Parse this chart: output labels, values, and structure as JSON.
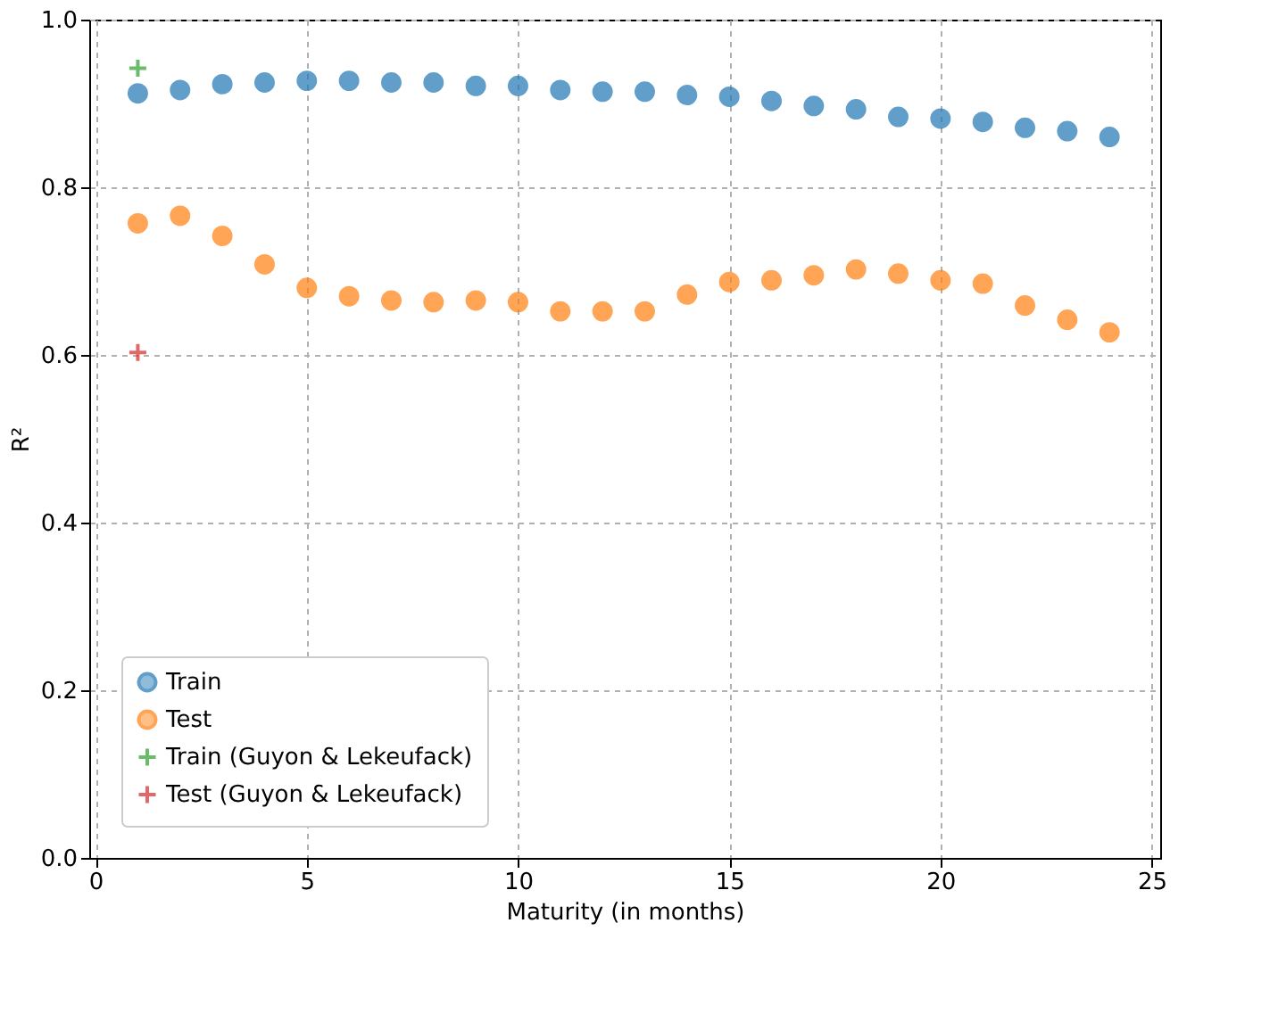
{
  "chart_data": {
    "type": "scatter",
    "xlabel": "Maturity (in months)",
    "ylabel": "R²",
    "xlim": [
      -0.15,
      25.2
    ],
    "xticks": [
      0,
      5,
      10,
      15,
      20,
      25
    ],
    "ylim": [
      0,
      1
    ],
    "yticks": [
      {
        "value": 0,
        "label": "0.0"
      },
      {
        "value": 0.2,
        "label": "0.2"
      },
      {
        "value": 0.4,
        "label": "0.4"
      },
      {
        "value": 0.6,
        "label": "0.6"
      },
      {
        "value": 0.8,
        "label": "0.8"
      },
      {
        "value": 1,
        "label": "1.0"
      }
    ],
    "grid": true,
    "legend": "bottom left",
    "x": [
      1,
      2,
      3,
      4,
      5,
      6,
      7,
      8,
      9,
      10,
      11,
      12,
      13,
      14,
      15,
      16,
      17,
      18,
      19,
      20,
      21,
      22,
      23,
      24
    ],
    "series": [
      {
        "name": "Train",
        "color": "#1f77b4",
        "marker": "circle",
        "values": [
          0.912,
          0.916,
          0.923,
          0.925,
          0.927,
          0.927,
          0.925,
          0.925,
          0.921,
          0.921,
          0.916,
          0.914,
          0.914,
          0.91,
          0.908,
          0.903,
          0.897,
          0.893,
          0.884,
          0.882,
          0.878,
          0.871,
          0.867,
          0.86
        ]
      },
      {
        "name": "Test",
        "color": "#ff7f0e",
        "marker": "circle",
        "values": [
          0.757,
          0.766,
          0.742,
          0.708,
          0.68,
          0.67,
          0.665,
          0.663,
          0.665,
          0.663,
          0.652,
          0.652,
          0.652,
          0.672,
          0.687,
          0.689,
          0.695,
          0.702,
          0.697,
          0.689,
          0.685,
          0.659,
          0.642,
          0.627
        ]
      },
      {
        "name": "Train (Guyon & Lekeufack)",
        "color": "#2ca02c",
        "marker": "cross",
        "x": [
          1
        ],
        "values": [
          0.942
        ]
      },
      {
        "name": "Test (Guyon & Lekeufack)",
        "color": "#d62728",
        "marker": "cross",
        "x": [
          1
        ],
        "values": [
          0.603
        ]
      }
    ]
  }
}
